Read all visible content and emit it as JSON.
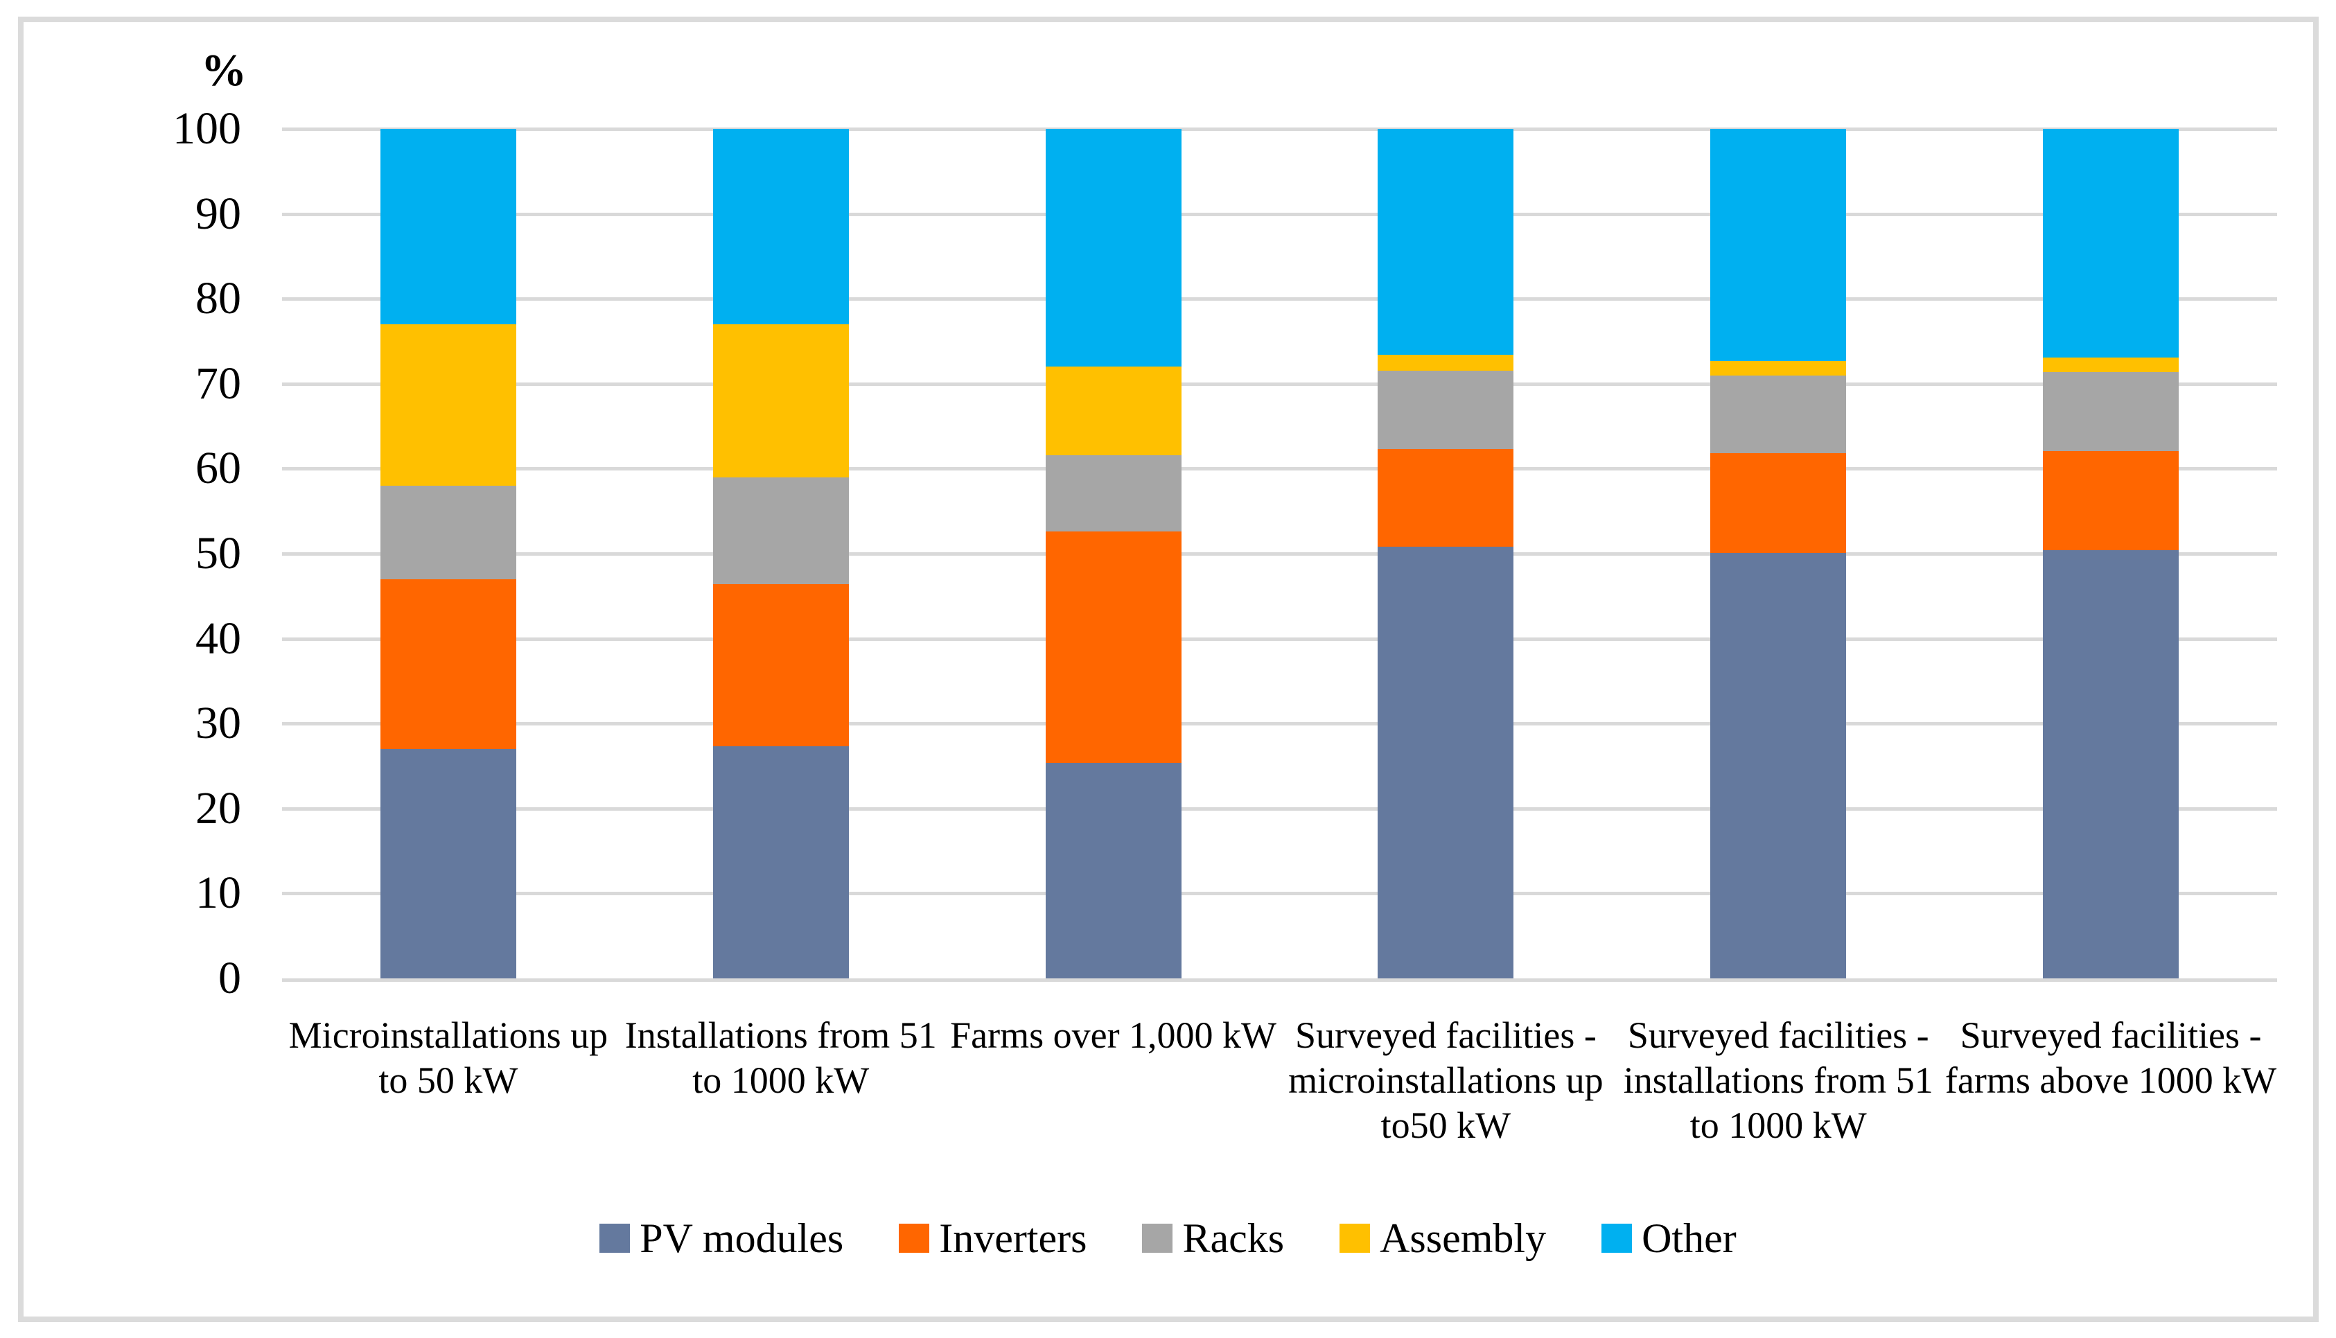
{
  "figure": {
    "background_color": "#FFFFFF",
    "border_color": "#DBDBDB",
    "gridline_color": "#D9D9D9",
    "text_color": "#000000"
  },
  "chart_data": {
    "type": "bar",
    "stacked": true,
    "orientation": "vertical",
    "title": "",
    "xlabel": "",
    "ylabel": "%",
    "unit": "%",
    "ylim": [
      0,
      100
    ],
    "ytick_interval": 10,
    "yticks": [
      0,
      10,
      20,
      30,
      40,
      50,
      60,
      70,
      80,
      90,
      100
    ],
    "grid": true,
    "legend_position": "bottom",
    "categories": [
      "Microinstallations up to 50 kW",
      "Installations from 51 to 1000 kW",
      "Farms over 1,000 kW",
      "Surveyed facilities - microinstallations up to50 kW",
      "Surveyed facilities - installations from 51 to 1000 kW",
      "Surveyed facilities - farms above 1000 kW"
    ],
    "category_label_lines": [
      [
        "Microinstallations up",
        "to 50 kW"
      ],
      [
        "Installations from 51",
        "to 1000 kW"
      ],
      [
        "Farms over 1,000 kW"
      ],
      [
        "Surveyed facilities -",
        "microinstallations up",
        "to50 kW"
      ],
      [
        "Surveyed facilities -",
        "installations from 51",
        "to 1000 kW"
      ],
      [
        "Surveyed facilities -",
        "farms above 1000 kW"
      ]
    ],
    "series": [
      {
        "name": "PV modules",
        "color": "#64799E",
        "values": [
          27.0,
          27.3,
          25.4,
          50.8,
          50.1,
          50.4
        ]
      },
      {
        "name": "Inverters",
        "color": "#FF6600",
        "values": [
          20.0,
          19.1,
          27.2,
          11.5,
          11.7,
          11.7
        ]
      },
      {
        "name": "Racks",
        "color": "#A6A6A6",
        "values": [
          11.0,
          12.6,
          9.0,
          9.2,
          9.2,
          9.3
        ]
      },
      {
        "name": "Assembly",
        "color": "#FFC000",
        "values": [
          19.0,
          18.0,
          10.4,
          1.9,
          1.7,
          1.7
        ]
      },
      {
        "name": "Other",
        "color": "#00B0F0",
        "values": [
          23.0,
          23.0,
          28.0,
          26.6,
          27.3,
          26.9
        ]
      }
    ]
  }
}
